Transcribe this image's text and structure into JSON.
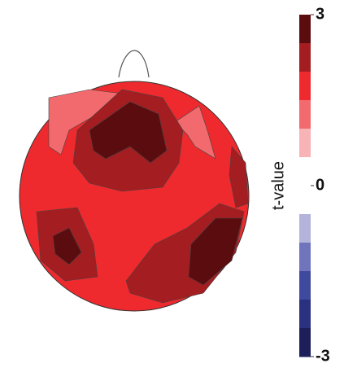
{
  "chart_data": {
    "type": "colorbar",
    "ylabel": "t-value",
    "ylim": [
      -3,
      3
    ],
    "yticks": [
      -3,
      0,
      3
    ],
    "colors": [
      "#5a0c0f",
      "#a31d21",
      "#ee2a2e",
      "#f36a6e",
      "#f7b3b5",
      "#ffffff",
      "#ffffff",
      "#b3b3dc",
      "#6f74bd",
      "#3f4a9e",
      "#2a3180",
      "#1c1f5a"
    ]
  }
}
